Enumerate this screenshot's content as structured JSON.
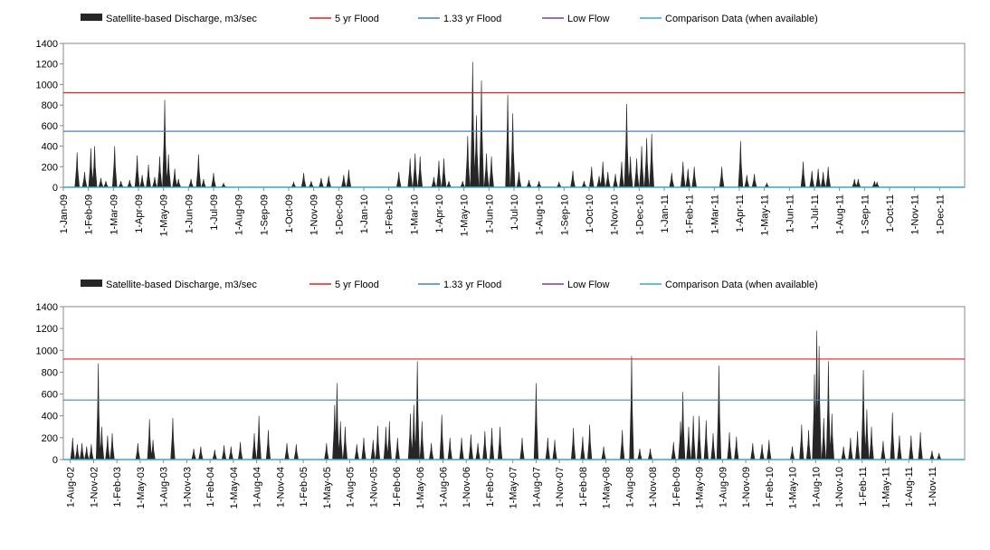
{
  "chart_data": [
    {
      "type": "area",
      "legend": [
        {
          "name": "Satellite-based Discharge, m3/sec",
          "kind": "area",
          "color": "#262626"
        },
        {
          "name": "5 yr Flood",
          "kind": "line",
          "color": "#e02020"
        },
        {
          "name": "1.33 yr Flood",
          "kind": "line",
          "color": "#4a7fc1"
        },
        {
          "name": "Low Flow",
          "kind": "line",
          "color": "#7a3f9a"
        },
        {
          "name": "Comparison Data (when available)",
          "kind": "line",
          "color": "#3aa6c7"
        }
      ],
      "ylim": [
        0,
        1400
      ],
      "yticks": [
        0,
        200,
        400,
        600,
        800,
        1000,
        1200,
        1400
      ],
      "xticks": [
        "1-Jan-09",
        "1-Feb-09",
        "1-Mar-09",
        "1-Apr-09",
        "1-May-09",
        "1-Jun-09",
        "1-Jul-09",
        "1-Aug-09",
        "1-Sep-09",
        "1-Oct-09",
        "1-Nov-09",
        "1-Dec-09",
        "1-Jan-10",
        "1-Feb-10",
        "1-Mar-10",
        "1-Apr-10",
        "1-May-10",
        "1-Jun-10",
        "1-Jul-10",
        "1-Aug-10",
        "1-Sep-10",
        "1-Oct-10",
        "1-Nov-10",
        "1-Dec-10",
        "1-Jan-11",
        "1-Feb-11",
        "1-Mar-11",
        "1-Apr-11",
        "1-May-11",
        "1-Jun-11",
        "1-Jul-11",
        "1-Aug-11",
        "1-Sep-11",
        "1-Oct-11",
        "1-Nov-11",
        "1-Dec-11"
      ],
      "xrange": [
        0,
        36
      ],
      "thresholds": {
        "flood_5yr": 920,
        "flood_1_33yr": 545,
        "low_flow": 0
      },
      "series": [
        {
          "name": "Satellite-based Discharge, m3/sec",
          "peaks": [
            [
              0.55,
              340
            ],
            [
              0.85,
              150
            ],
            [
              1.1,
              380
            ],
            [
              1.25,
              400
            ],
            [
              1.5,
              90
            ],
            [
              1.7,
              60
            ],
            [
              2.05,
              400
            ],
            [
              2.3,
              60
            ],
            [
              2.65,
              70
            ],
            [
              2.95,
              310
            ],
            [
              3.15,
              120
            ],
            [
              3.4,
              220
            ],
            [
              3.65,
              100
            ],
            [
              3.85,
              300
            ],
            [
              4.05,
              850
            ],
            [
              4.2,
              320
            ],
            [
              4.45,
              180
            ],
            [
              4.6,
              80
            ],
            [
              5.1,
              80
            ],
            [
              5.4,
              320
            ],
            [
              5.6,
              80
            ],
            [
              6.0,
              140
            ],
            [
              6.4,
              40
            ],
            [
              9.2,
              50
            ],
            [
              9.6,
              140
            ],
            [
              9.9,
              60
            ],
            [
              10.3,
              90
            ],
            [
              10.6,
              110
            ],
            [
              11.2,
              120
            ],
            [
              11.4,
              170
            ],
            [
              13.4,
              150
            ],
            [
              13.85,
              280
            ],
            [
              14.05,
              330
            ],
            [
              14.25,
              300
            ],
            [
              14.8,
              100
            ],
            [
              15.0,
              260
            ],
            [
              15.2,
              280
            ],
            [
              15.4,
              60
            ],
            [
              15.95,
              60
            ],
            [
              16.15,
              500
            ],
            [
              16.35,
              1220
            ],
            [
              16.5,
              700
            ],
            [
              16.7,
              1040
            ],
            [
              16.9,
              330
            ],
            [
              17.1,
              300
            ],
            [
              17.75,
              900
            ],
            [
              17.95,
              720
            ],
            [
              18.2,
              150
            ],
            [
              18.6,
              70
            ],
            [
              19.0,
              60
            ],
            [
              19.8,
              50
            ],
            [
              20.35,
              160
            ],
            [
              20.8,
              60
            ],
            [
              21.1,
              200
            ],
            [
              21.4,
              110
            ],
            [
              21.55,
              250
            ],
            [
              21.75,
              150
            ],
            [
              22.05,
              130
            ],
            [
              22.3,
              250
            ],
            [
              22.5,
              810
            ],
            [
              22.65,
              300
            ],
            [
              22.9,
              280
            ],
            [
              23.1,
              400
            ],
            [
              23.3,
              480
            ],
            [
              23.5,
              520
            ],
            [
              24.3,
              140
            ],
            [
              24.75,
              250
            ],
            [
              24.95,
              180
            ],
            [
              25.2,
              200
            ],
            [
              26.3,
              200
            ],
            [
              27.05,
              450
            ],
            [
              27.3,
              120
            ],
            [
              27.6,
              130
            ],
            [
              28.1,
              40
            ],
            [
              29.55,
              250
            ],
            [
              29.9,
              160
            ],
            [
              30.15,
              180
            ],
            [
              30.35,
              150
            ],
            [
              30.55,
              200
            ],
            [
              31.6,
              80
            ],
            [
              31.75,
              80
            ],
            [
              32.4,
              60
            ],
            [
              32.5,
              50
            ]
          ]
        }
      ]
    },
    {
      "type": "area",
      "legend": [
        {
          "name": "Satellite-based Discharge, m3/sec",
          "kind": "area",
          "color": "#262626"
        },
        {
          "name": "5 yr Flood",
          "kind": "line",
          "color": "#e02020"
        },
        {
          "name": "1.33 yr Flood",
          "kind": "line",
          "color": "#4a7fc1"
        },
        {
          "name": "Low Flow",
          "kind": "line",
          "color": "#7a3f9a"
        },
        {
          "name": "Comparison Data (when available)",
          "kind": "line",
          "color": "#3aa6c7"
        }
      ],
      "ylim": [
        0,
        1400
      ],
      "yticks": [
        0,
        200,
        400,
        600,
        800,
        1000,
        1200,
        1400
      ],
      "xticks": [
        "1-Aug-02",
        "1-Nov-02",
        "1-Feb-03",
        "1-May-03",
        "1-Aug-03",
        "1-Nov-03",
        "1-Feb-04",
        "1-May-04",
        "1-Aug-04",
        "1-Nov-04",
        "1-Feb-05",
        "1-May-05",
        "1-Aug-05",
        "1-Nov-05",
        "1-Feb-06",
        "1-May-06",
        "1-Aug-06",
        "1-Nov-06",
        "1-Feb-07",
        "1-May-07",
        "1-Aug-07",
        "1-Nov-07",
        "1-Feb-08",
        "1-May-08",
        "1-Aug-08",
        "1-Nov-08",
        "1-Feb-09",
        "1-May-09",
        "1-Aug-09",
        "1-Nov-09",
        "1-Feb-10",
        "1-May-10",
        "1-Aug-10",
        "1-Nov-10",
        "1-Feb-11",
        "1-May-11",
        "1-Aug-11",
        "1-Nov-11"
      ],
      "xrange": [
        -0.3,
        38.4
      ],
      "thresholds": {
        "flood_5yr": 920,
        "flood_1_33yr": 545,
        "low_flow": 0
      },
      "series": [
        {
          "name": "Satellite-based Discharge, m3/sec",
          "peaks": [
            [
              0.1,
              200
            ],
            [
              0.3,
              140
            ],
            [
              0.5,
              150
            ],
            [
              0.7,
              120
            ],
            [
              0.9,
              140
            ],
            [
              1.2,
              880
            ],
            [
              1.35,
              300
            ],
            [
              1.6,
              220
            ],
            [
              1.8,
              240
            ],
            [
              2.9,
              150
            ],
            [
              3.4,
              370
            ],
            [
              3.55,
              180
            ],
            [
              4.4,
              380
            ],
            [
              5.3,
              100
            ],
            [
              5.6,
              120
            ],
            [
              6.2,
              90
            ],
            [
              6.6,
              130
            ],
            [
              6.9,
              120
            ],
            [
              7.3,
              160
            ],
            [
              7.9,
              240
            ],
            [
              8.1,
              400
            ],
            [
              8.5,
              270
            ],
            [
              9.3,
              150
            ],
            [
              9.7,
              140
            ],
            [
              11.0,
              150
            ],
            [
              11.35,
              500
            ],
            [
              11.45,
              700
            ],
            [
              11.6,
              350
            ],
            [
              11.8,
              300
            ],
            [
              12.3,
              140
            ],
            [
              12.6,
              200
            ],
            [
              13.0,
              180
            ],
            [
              13.2,
              310
            ],
            [
              13.55,
              300
            ],
            [
              13.7,
              350
            ],
            [
              14.05,
              200
            ],
            [
              14.6,
              420
            ],
            [
              14.75,
              500
            ],
            [
              14.9,
              900
            ],
            [
              15.1,
              350
            ],
            [
              15.5,
              150
            ],
            [
              15.95,
              410
            ],
            [
              16.3,
              200
            ],
            [
              16.8,
              200
            ],
            [
              17.2,
              230
            ],
            [
              17.5,
              150
            ],
            [
              17.8,
              260
            ],
            [
              18.1,
              290
            ],
            [
              18.45,
              300
            ],
            [
              19.4,
              200
            ],
            [
              20.0,
              700
            ],
            [
              20.5,
              200
            ],
            [
              20.8,
              180
            ],
            [
              21.6,
              290
            ],
            [
              22.0,
              210
            ],
            [
              22.3,
              320
            ],
            [
              22.9,
              120
            ],
            [
              23.7,
              270
            ],
            [
              24.1,
              950
            ],
            [
              24.45,
              100
            ],
            [
              24.9,
              100
            ],
            [
              25.9,
              160
            ],
            [
              26.2,
              350
            ],
            [
              26.3,
              620
            ],
            [
              26.55,
              300
            ],
            [
              26.75,
              400
            ],
            [
              27.0,
              400
            ],
            [
              27.3,
              360
            ],
            [
              27.6,
              240
            ],
            [
              27.85,
              860
            ],
            [
              28.3,
              250
            ],
            [
              28.6,
              210
            ],
            [
              29.3,
              150
            ],
            [
              29.7,
              140
            ],
            [
              30.0,
              180
            ],
            [
              31.0,
              120
            ],
            [
              31.4,
              320
            ],
            [
              31.7,
              270
            ],
            [
              31.95,
              780
            ],
            [
              32.05,
              1180
            ],
            [
              32.15,
              1040
            ],
            [
              32.35,
              380
            ],
            [
              32.55,
              900
            ],
            [
              32.7,
              420
            ],
            [
              33.2,
              120
            ],
            [
              33.5,
              200
            ],
            [
              33.8,
              260
            ],
            [
              34.05,
              820
            ],
            [
              34.2,
              460
            ],
            [
              34.4,
              300
            ],
            [
              34.9,
              170
            ],
            [
              35.3,
              430
            ],
            [
              35.6,
              220
            ],
            [
              36.1,
              220
            ],
            [
              36.5,
              250
            ],
            [
              37.0,
              80
            ],
            [
              37.3,
              60
            ]
          ]
        }
      ]
    }
  ]
}
